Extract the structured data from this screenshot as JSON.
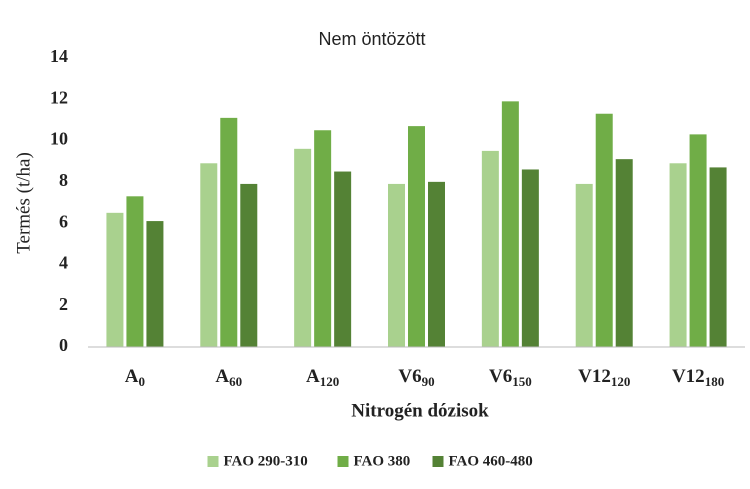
{
  "chart_data": {
    "type": "bar",
    "title": "Nem öntözött",
    "x_label": "Nitrogén dózisok",
    "y_label": "Termés (t/ha)",
    "categories": [
      [
        "A",
        "0"
      ],
      [
        "A",
        "60"
      ],
      [
        "A",
        "120"
      ],
      [
        "V6",
        "90"
      ],
      [
        "V6",
        "150"
      ],
      [
        "V12",
        "120"
      ],
      [
        "V12",
        "180"
      ]
    ],
    "series": [
      {
        "name": "FAO 290-310",
        "color": "#a9d18e",
        "values": [
          6.5,
          8.9,
          9.6,
          7.9,
          9.5,
          7.9,
          8.9
        ]
      },
      {
        "name": "FAO 380",
        "color": "#70ad47",
        "values": [
          7.3,
          11.1,
          10.5,
          10.7,
          11.9,
          11.3,
          10.3
        ]
      },
      {
        "name": "FAO 460-480",
        "color": "#548235",
        "values": [
          6.1,
          7.9,
          8.5,
          8.0,
          8.6,
          9.1,
          8.7
        ]
      }
    ],
    "ylim": [
      0,
      14
    ],
    "yticks": [
      0,
      2,
      4,
      6,
      8,
      10,
      12,
      14
    ],
    "legend": "bottom"
  }
}
